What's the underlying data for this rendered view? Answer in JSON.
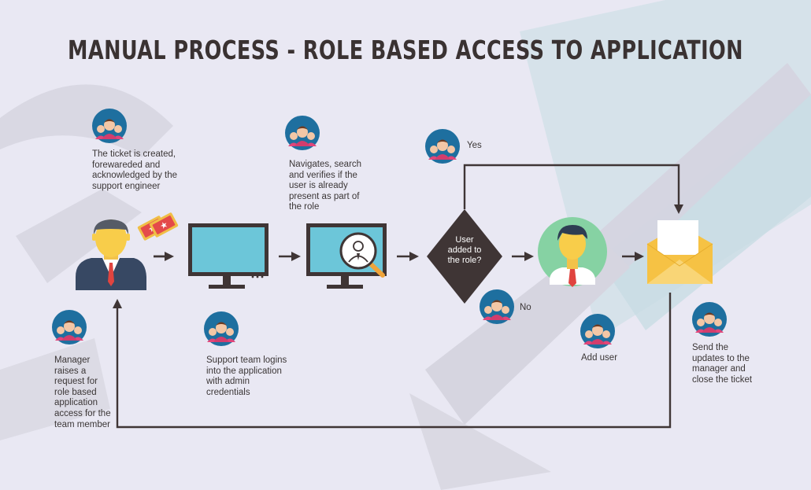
{
  "title": "MANUAL PROCESS - ROLE BASED ACCESS TO APPLICATION",
  "colors": {
    "background": "#e9e8f3",
    "dark": "#3f3535",
    "avatar_circle": "#1e6f9f",
    "monitor_screen": "#6cc6d9",
    "envelope": "#f6c244",
    "user_circle": "#86d2a3"
  },
  "steps": {
    "manager": "Manager raises a request for role based application access for the team member",
    "ticket": "The ticket is created, forewareded and acknowledged by the support engineer",
    "support_login": "Support team logins into the application with admin credentials",
    "navigate": "Navigates, search and verifies if the user is already present as part of the role",
    "yes": "Yes",
    "no": "No",
    "decision": "User added to the role?",
    "add_user": "Add user",
    "send_updates": "Send the updates to the manager and close the ticket"
  },
  "icons": {
    "manager": "businessman-icon",
    "ticket": "ticket-icon",
    "monitor": "monitor-icon",
    "search_monitor": "monitor-search-user-icon",
    "user": "user-avatar-icon",
    "envelope": "envelope-icon",
    "team": "team-avatar-icon"
  }
}
